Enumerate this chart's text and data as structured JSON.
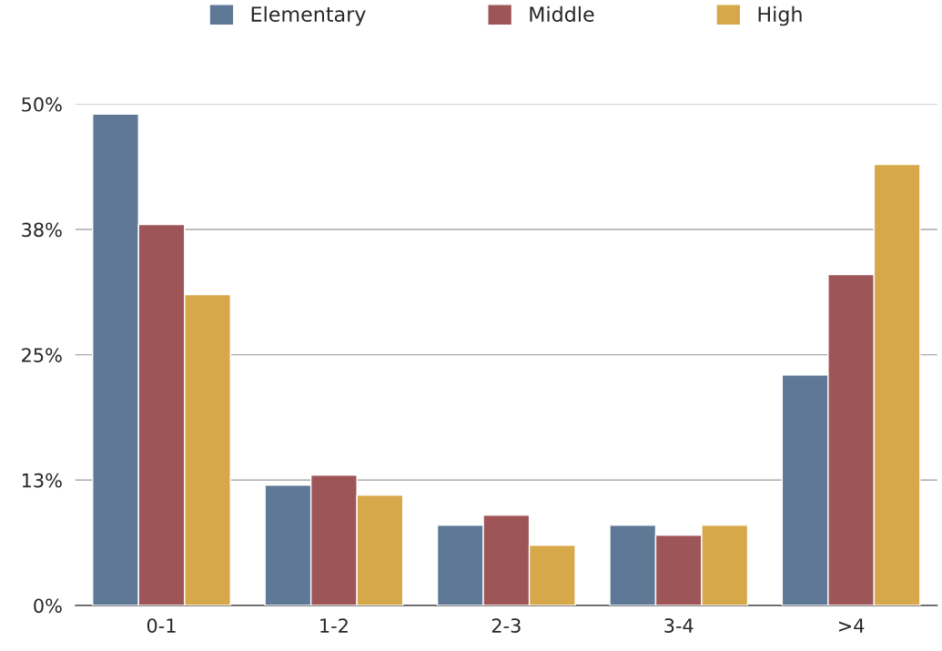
{
  "chart_data": {
    "type": "bar",
    "categories": [
      "0-1",
      "1-2",
      "2-3",
      "3-4",
      ">4"
    ],
    "series": [
      {
        "name": "Elementary",
        "color": "#5f7896",
        "values": [
          49,
          12,
          8,
          8,
          23
        ]
      },
      {
        "name": "Middle",
        "color": "#9e5558",
        "values": [
          38,
          13,
          9,
          7,
          33
        ]
      },
      {
        "name": "High",
        "color": "#d7a84a",
        "values": [
          31,
          11,
          6,
          8,
          44
        ]
      }
    ],
    "ylim": [
      0,
      50
    ],
    "yticks": [
      {
        "value": 0,
        "label": "0%"
      },
      {
        "value": 12.5,
        "label": "13%"
      },
      {
        "value": 25,
        "label": "25%"
      },
      {
        "value": 37.5,
        "label": "38%"
      },
      {
        "value": 50,
        "label": "50%"
      }
    ],
    "grid": "y",
    "legend": "top"
  }
}
